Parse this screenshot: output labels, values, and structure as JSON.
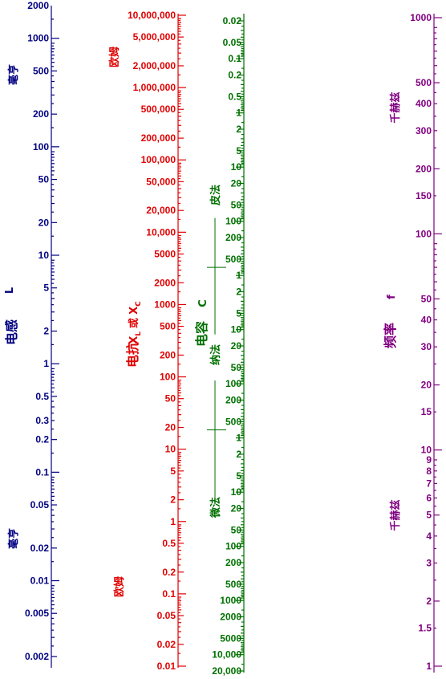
{
  "colors": {
    "inductance": "#000080",
    "reactance": "#e00000",
    "capacitance": "#007000",
    "frequency": "#800080"
  },
  "inductance": {
    "title": "电感",
    "symbol": "L",
    "unit_top": "毫亨",
    "unit_bottom": "毫亨",
    "labels": [
      {
        "v": 2000,
        "t": "2000"
      },
      {
        "v": 1000,
        "t": "1000"
      },
      {
        "v": 500,
        "t": "500"
      },
      {
        "v": 200,
        "t": "200"
      },
      {
        "v": 100,
        "t": "100"
      },
      {
        "v": 50,
        "t": "50"
      },
      {
        "v": 20,
        "t": "20"
      },
      {
        "v": 10,
        "t": "10"
      },
      {
        "v": 5,
        "t": "5"
      },
      {
        "v": 2,
        "t": "2"
      },
      {
        "v": 1,
        "t": "1"
      },
      {
        "v": 0.5,
        "t": "0.5"
      },
      {
        "v": 0.3,
        "t": "0.3"
      },
      {
        "v": 0.2,
        "t": "0.2"
      },
      {
        "v": 0.1,
        "t": "0.1"
      },
      {
        "v": 0.05,
        "t": "0.05"
      },
      {
        "v": 0.02,
        "t": "0.02"
      },
      {
        "v": 0.01,
        "t": "0.01"
      },
      {
        "v": 0.005,
        "t": "0.005"
      },
      {
        "v": 0.002,
        "t": "0.002"
      }
    ]
  },
  "reactance": {
    "title": "电抗",
    "symbol_main": "X",
    "sub_l": "L",
    "or_text": "或",
    "sub_c": "C",
    "unit_top": "欧姆",
    "unit_bottom": "欧姆",
    "labels": [
      {
        "v": 10000000,
        "t": "10,000,000"
      },
      {
        "v": 5000000,
        "t": "5,000,000"
      },
      {
        "v": 2000000,
        "t": "2,000,000"
      },
      {
        "v": 1000000,
        "t": "1,000,000"
      },
      {
        "v": 500000,
        "t": "500,000"
      },
      {
        "v": 200000,
        "t": "200,000"
      },
      {
        "v": 100000,
        "t": "100,000"
      },
      {
        "v": 50000,
        "t": "50,000"
      },
      {
        "v": 20000,
        "t": "20,000"
      },
      {
        "v": 10000,
        "t": "10,000"
      },
      {
        "v": 5000,
        "t": "5000"
      },
      {
        "v": 2000,
        "t": "2000"
      },
      {
        "v": 1000,
        "t": "1000"
      },
      {
        "v": 500,
        "t": "500"
      },
      {
        "v": 200,
        "t": "200"
      },
      {
        "v": 100,
        "t": "100"
      },
      {
        "v": 50,
        "t": "50"
      },
      {
        "v": 20,
        "t": "20"
      },
      {
        "v": 10,
        "t": "10"
      },
      {
        "v": 5,
        "t": "5"
      },
      {
        "v": 2,
        "t": "2"
      },
      {
        "v": 1,
        "t": "1"
      },
      {
        "v": 0.5,
        "t": "0.5"
      },
      {
        "v": 0.2,
        "t": "0.2"
      },
      {
        "v": 0.1,
        "t": "0.1"
      },
      {
        "v": 0.05,
        "t": "0.05"
      },
      {
        "v": 0.02,
        "t": "0.02"
      },
      {
        "v": 0.01,
        "t": "0.01"
      }
    ]
  },
  "capacitance": {
    "title": "电容",
    "symbol": "C",
    "unit_pf": "皮法",
    "unit_nf": "纳法",
    "unit_uf": "微法",
    "labels": [
      {
        "v": 0.02,
        "t": "0.02"
      },
      {
        "v": 0.05,
        "t": "0.05"
      },
      {
        "v": 0.1,
        "t": "0.1"
      },
      {
        "v": 0.2,
        "t": "0.2"
      },
      {
        "v": 0.5,
        "t": "0.5"
      },
      {
        "v": 1,
        "t": "1"
      },
      {
        "v": 2,
        "t": "2"
      },
      {
        "v": 5,
        "t": "5"
      },
      {
        "v": 10,
        "t": "10"
      },
      {
        "v": 20,
        "t": "20"
      },
      {
        "v": 50,
        "t": "50"
      },
      {
        "v": 100,
        "t": "100"
      },
      {
        "v": 200,
        "t": "200"
      },
      {
        "v": 500,
        "t": "500"
      },
      {
        "v": 1000,
        "t": "1"
      },
      {
        "v": 2000,
        "t": "2"
      },
      {
        "v": 5000,
        "t": "5"
      },
      {
        "v": 10000,
        "t": "10"
      },
      {
        "v": 20000,
        "t": "20"
      },
      {
        "v": 50000,
        "t": "50"
      },
      {
        "v": 100000,
        "t": "100"
      },
      {
        "v": 200000,
        "t": "200"
      },
      {
        "v": 500000,
        "t": "500"
      },
      {
        "v": 1000000,
        "t": "1"
      },
      {
        "v": 2000000,
        "t": "2"
      },
      {
        "v": 5000000,
        "t": "5"
      },
      {
        "v": 10000000,
        "t": "10"
      },
      {
        "v": 20000000,
        "t": "20"
      },
      {
        "v": 50000000,
        "t": "50"
      },
      {
        "v": 100000000,
        "t": "100"
      },
      {
        "v": 200000000,
        "t": "200"
      },
      {
        "v": 500000000,
        "t": "500"
      },
      {
        "v": 1000000000,
        "t": "1000"
      },
      {
        "v": 2000000000,
        "t": "2000"
      },
      {
        "v": 5000000000,
        "t": "5000"
      },
      {
        "v": 10000000000,
        "t": "10,000"
      },
      {
        "v": 20000000000,
        "t": "20,000"
      }
    ]
  },
  "frequency": {
    "title": "频率",
    "symbol": "f",
    "unit_top": "千赫兹",
    "unit_bottom": "千赫兹",
    "labels": [
      {
        "v": 1000,
        "t": "1000"
      },
      {
        "v": 500,
        "t": "500"
      },
      {
        "v": 400,
        "t": "400"
      },
      {
        "v": 300,
        "t": "300"
      },
      {
        "v": 200,
        "t": "200"
      },
      {
        "v": 150,
        "t": "150"
      },
      {
        "v": 100,
        "t": "100"
      },
      {
        "v": 50,
        "t": "50"
      },
      {
        "v": 40,
        "t": "40"
      },
      {
        "v": 30,
        "t": "30"
      },
      {
        "v": 20,
        "t": "20"
      },
      {
        "v": 15,
        "t": "15"
      },
      {
        "v": 10,
        "t": "10"
      },
      {
        "v": 9,
        "t": "9"
      },
      {
        "v": 8,
        "t": "8"
      },
      {
        "v": 7,
        "t": "7"
      },
      {
        "v": 6,
        "t": "6"
      },
      {
        "v": 5,
        "t": "5"
      },
      {
        "v": 4,
        "t": "4"
      },
      {
        "v": 3,
        "t": "3"
      },
      {
        "v": 2,
        "t": "2"
      },
      {
        "v": 1.5,
        "t": "1.5"
      },
      {
        "v": 1,
        "t": "1"
      }
    ]
  }
}
